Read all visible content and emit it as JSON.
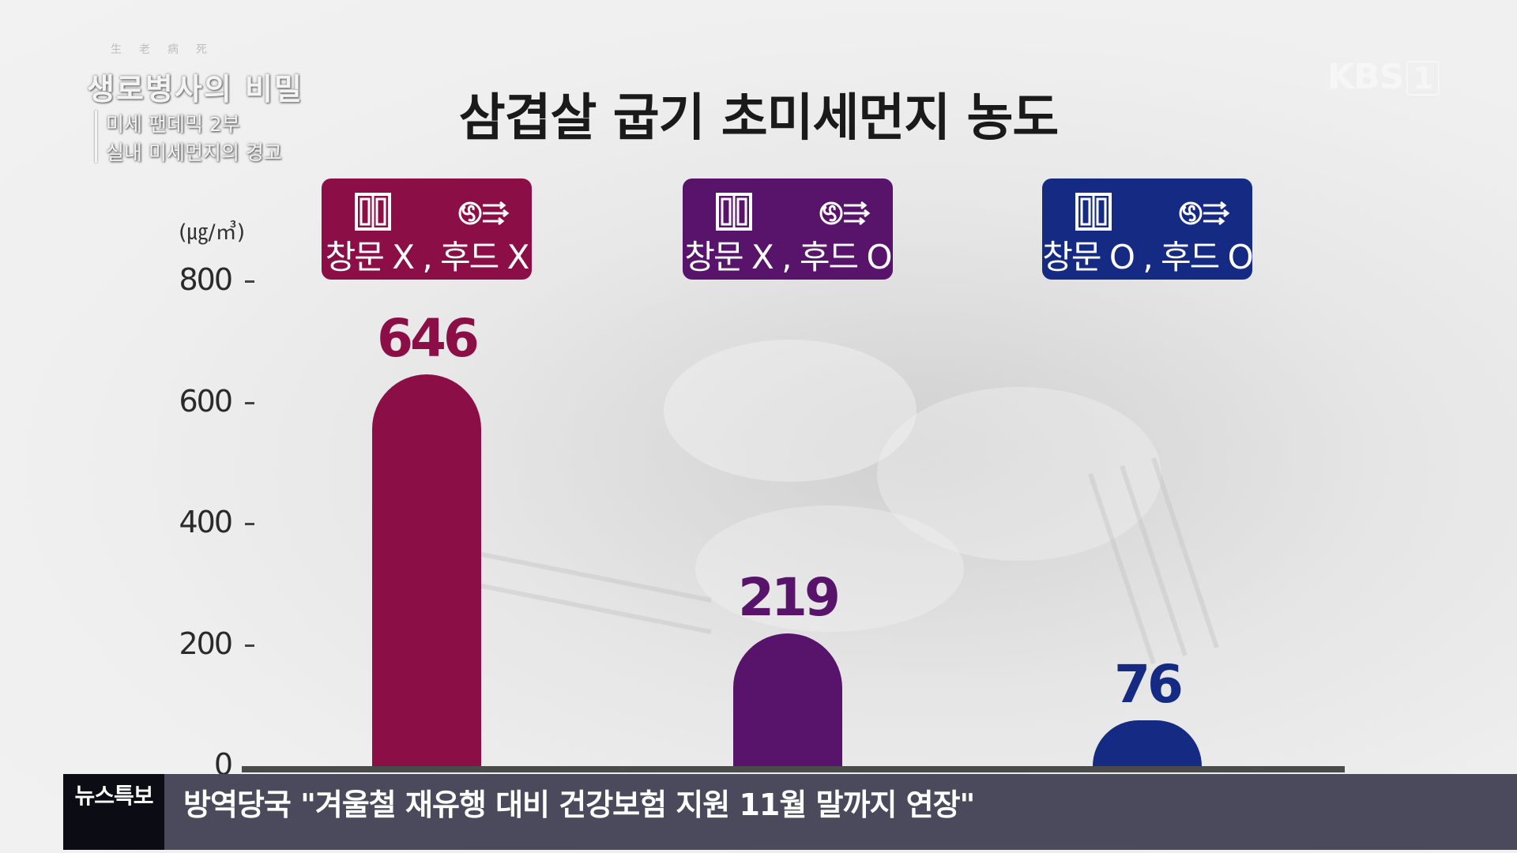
{
  "program": {
    "hanja": "生老病死",
    "title": "생로병사의 비밀",
    "episode_line1": "미세 팬데믹 2부",
    "episode_line2": "실내 미세먼지의 경고"
  },
  "broadcaster": {
    "logo": "KBS",
    "channel": "1"
  },
  "chart_data": {
    "type": "bar",
    "title": "삼겹살 굽기 초미세먼지 농도",
    "unit": "(㎍/㎥)",
    "categories": [
      "창문 X , 후드 X",
      "창문 X , 후드 O",
      "창문 O , 후드 O"
    ],
    "values": [
      646,
      219,
      76
    ],
    "value_labels": [
      "646",
      "219",
      "76"
    ],
    "colors": [
      "#8b0f46",
      "#58136a",
      "#152a82"
    ],
    "category_icons": [
      "window-icon",
      "fan-hood-icon"
    ],
    "ylim": [
      0,
      800
    ],
    "yticks": [
      "0",
      "200",
      "400",
      "600",
      "800"
    ],
    "ytick_values": [
      0,
      200,
      400,
      600,
      800
    ],
    "grid": false,
    "legend": "none"
  },
  "ticker": {
    "tag": "뉴스특보",
    "text": "방역당국 \"겨울철 재유행 대비 건강보험 지원 11월 말까지 연장\""
  }
}
